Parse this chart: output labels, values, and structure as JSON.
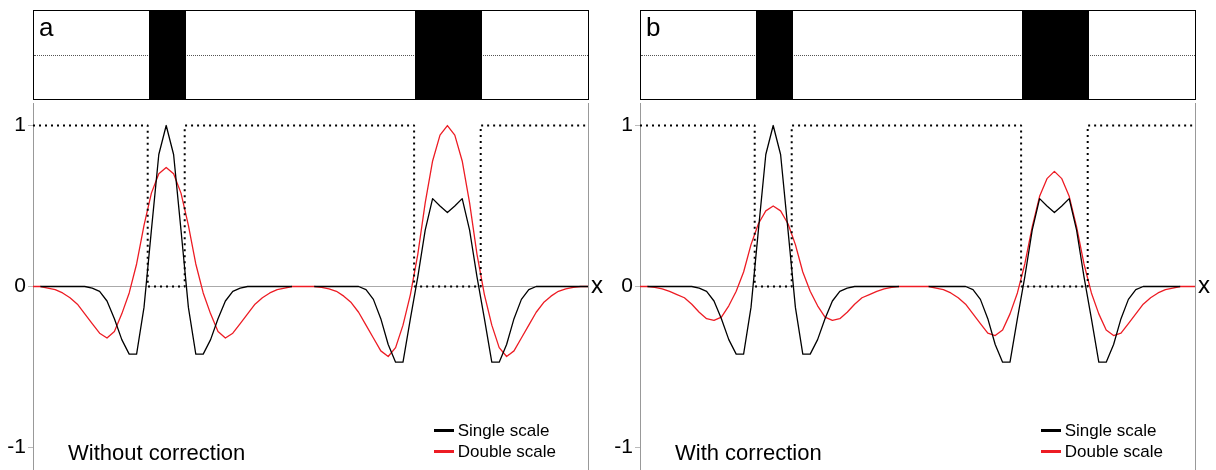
{
  "chart_data": [
    {
      "type": "line",
      "title": "a",
      "xlabel": "x",
      "annotations": [
        "Without correction"
      ],
      "ref_lines": [
        {
          "axis": "y",
          "value": 0,
          "color": "#aaaaaa"
        }
      ],
      "ylim": [
        -1.14,
        1.14
      ],
      "yticks": [
        -1,
        0,
        1
      ],
      "grid": false,
      "legend": "bottom right",
      "tick_labels": "y",
      "marker": "none",
      "categories": [
        null,
        null,
        null,
        null,
        null,
        null,
        null,
        null,
        null,
        null,
        null,
        null,
        null,
        null,
        null,
        null,
        null,
        null,
        null,
        null,
        null,
        null,
        null,
        null,
        null,
        null,
        null,
        null,
        null,
        null,
        null,
        null,
        null,
        null,
        null,
        null,
        null,
        null,
        null,
        null,
        null,
        null,
        null,
        null,
        null,
        null,
        null,
        null,
        null,
        null,
        null,
        null,
        null,
        null,
        null,
        null,
        null,
        null,
        null,
        null,
        null,
        null,
        null,
        null,
        null,
        null,
        null,
        null,
        null,
        null,
        null,
        null,
        null,
        null,
        null,
        null
      ],
      "series": [
        {
          "type": "step",
          "color": "#000000",
          "line_style": "dotted",
          "values": [
            1,
            1,
            1,
            1,
            1,
            1,
            1,
            1,
            1,
            1,
            1,
            1,
            1,
            1,
            1,
            1,
            0,
            0,
            0,
            0,
            0,
            1,
            1,
            1,
            1,
            1,
            1,
            1,
            1,
            1,
            1,
            1,
            1,
            1,
            1,
            1,
            1,
            1,
            1,
            1,
            1,
            1,
            1,
            1,
            1,
            1,
            1,
            1,
            1,
            1,
            1,
            1,
            0,
            0,
            0,
            0,
            0,
            0,
            0,
            0,
            0,
            1,
            1,
            1,
            1,
            1,
            1,
            1,
            1,
            1,
            1,
            1,
            1,
            1,
            1,
            1
          ]
        },
        {
          "name": "Single scale",
          "color": "#000000",
          "values": [
            null,
            0,
            0,
            0,
            0,
            0,
            0,
            0,
            -0.01,
            -0.03,
            -0.09,
            -0.2,
            -0.33,
            -0.42,
            -0.42,
            -0.13,
            0.35,
            0.82,
            1,
            0.82,
            0.35,
            -0.13,
            -0.42,
            -0.42,
            -0.33,
            -0.2,
            -0.09,
            -0.03,
            -0.01,
            0,
            0,
            0,
            0,
            0,
            0,
            0,
            null,
            null,
            0,
            0,
            0,
            0,
            0,
            0,
            0,
            -0.02,
            -0.08,
            -0.2,
            -0.36,
            -0.47,
            -0.47,
            -0.2,
            0.06,
            0.35,
            0.546,
            0.5,
            0.46,
            0.5,
            0.546,
            0.35,
            0.06,
            -0.2,
            -0.47,
            -0.47,
            -0.36,
            -0.2,
            -0.08,
            -0.02,
            0,
            0,
            0,
            0,
            0,
            0,
            0,
            0
          ]
        },
        {
          "name": "Double scale",
          "color": "#ed1c24",
          "values": [
            0,
            0,
            -0.01,
            -0.02,
            -0.04,
            -0.07,
            -0.11,
            -0.17,
            -0.23,
            -0.29,
            -0.32,
            -0.28,
            -0.17,
            -0.04,
            0.14,
            0.38,
            0.58,
            0.7,
            0.74,
            0.7,
            0.58,
            0.38,
            0.14,
            -0.04,
            -0.17,
            -0.28,
            -0.32,
            -0.29,
            -0.23,
            -0.17,
            -0.11,
            -0.07,
            -0.04,
            -0.02,
            -0.01,
            0,
            0,
            0,
            0,
            -0.005,
            -0.015,
            -0.03,
            -0.06,
            -0.1,
            -0.16,
            -0.24,
            -0.32,
            -0.4,
            -0.435,
            -0.38,
            -0.24,
            -0.05,
            0.2,
            0.52,
            0.78,
            0.94,
            1,
            0.94,
            0.78,
            0.52,
            0.2,
            -0.05,
            -0.24,
            -0.38,
            -0.435,
            -0.4,
            -0.32,
            -0.24,
            -0.16,
            -0.1,
            -0.06,
            -0.03,
            -0.015,
            -0.005,
            0,
            0
          ]
        }
      ]
    },
    {
      "type": "line",
      "title": "b",
      "xlabel": "x",
      "annotations": [
        "With correction"
      ],
      "ref_lines": [
        {
          "axis": "y",
          "value": 0,
          "color": "#aaaaaa"
        }
      ],
      "ylim": [
        -1.14,
        1.14
      ],
      "yticks": [
        -1,
        0,
        1
      ],
      "grid": false,
      "legend": "bottom right",
      "tick_labels": "y",
      "marker": "none",
      "categories": [
        null,
        null,
        null,
        null,
        null,
        null,
        null,
        null,
        null,
        null,
        null,
        null,
        null,
        null,
        null,
        null,
        null,
        null,
        null,
        null,
        null,
        null,
        null,
        null,
        null,
        null,
        null,
        null,
        null,
        null,
        null,
        null,
        null,
        null,
        null,
        null,
        null,
        null,
        null,
        null,
        null,
        null,
        null,
        null,
        null,
        null,
        null,
        null,
        null,
        null,
        null,
        null,
        null,
        null,
        null,
        null,
        null,
        null,
        null,
        null,
        null,
        null,
        null,
        null,
        null,
        null,
        null,
        null,
        null,
        null,
        null,
        null,
        null,
        null,
        null,
        null
      ],
      "series": [
        {
          "type": "step",
          "color": "#000000",
          "line_style": "dotted",
          "values": [
            1,
            1,
            1,
            1,
            1,
            1,
            1,
            1,
            1,
            1,
            1,
            1,
            1,
            1,
            1,
            1,
            0,
            0,
            0,
            0,
            0,
            1,
            1,
            1,
            1,
            1,
            1,
            1,
            1,
            1,
            1,
            1,
            1,
            1,
            1,
            1,
            1,
            1,
            1,
            1,
            1,
            1,
            1,
            1,
            1,
            1,
            1,
            1,
            1,
            1,
            1,
            1,
            0,
            0,
            0,
            0,
            0,
            0,
            0,
            0,
            0,
            1,
            1,
            1,
            1,
            1,
            1,
            1,
            1,
            1,
            1,
            1,
            1,
            1,
            1,
            1
          ]
        },
        {
          "name": "Single scale",
          "color": "#000000",
          "values": [
            null,
            0,
            0,
            0,
            0,
            0,
            0,
            0,
            -0.01,
            -0.03,
            -0.09,
            -0.2,
            -0.33,
            -0.42,
            -0.42,
            -0.13,
            0.35,
            0.82,
            1,
            0.82,
            0.35,
            -0.13,
            -0.42,
            -0.42,
            -0.33,
            -0.2,
            -0.09,
            -0.03,
            -0.01,
            0,
            0,
            0,
            0,
            0,
            0,
            0,
            null,
            null,
            null,
            0,
            0,
            0,
            0,
            0,
            0,
            -0.02,
            -0.08,
            -0.2,
            -0.36,
            -0.47,
            -0.47,
            -0.2,
            0.06,
            0.35,
            0.546,
            0.5,
            0.46,
            0.5,
            0.546,
            0.35,
            0.06,
            -0.2,
            -0.47,
            -0.47,
            -0.36,
            -0.2,
            -0.08,
            -0.02,
            0,
            0,
            0,
            0,
            0,
            0,
            null,
            null
          ]
        },
        {
          "name": "Double scale",
          "color": "#ed1c24",
          "values": [
            0,
            0,
            -0.005,
            -0.015,
            -0.03,
            -0.05,
            -0.07,
            -0.11,
            -0.16,
            -0.2,
            -0.21,
            -0.19,
            -0.12,
            -0.03,
            0.09,
            0.26,
            0.39,
            0.47,
            0.5,
            0.47,
            0.39,
            0.26,
            0.09,
            -0.03,
            -0.12,
            -0.19,
            -0.21,
            -0.2,
            -0.16,
            -0.11,
            -0.07,
            -0.05,
            -0.03,
            -0.015,
            -0.005,
            0,
            0,
            0,
            0,
            0,
            -0.01,
            -0.02,
            -0.04,
            -0.07,
            -0.11,
            -0.17,
            -0.23,
            -0.29,
            -0.305,
            -0.27,
            -0.17,
            -0.04,
            0.14,
            0.37,
            0.56,
            0.67,
            0.715,
            0.67,
            0.56,
            0.37,
            0.14,
            -0.04,
            -0.17,
            -0.27,
            -0.305,
            -0.29,
            -0.23,
            -0.17,
            -0.11,
            -0.07,
            -0.04,
            -0.02,
            -0.01,
            0,
            0,
            0
          ]
        }
      ]
    }
  ]
}
